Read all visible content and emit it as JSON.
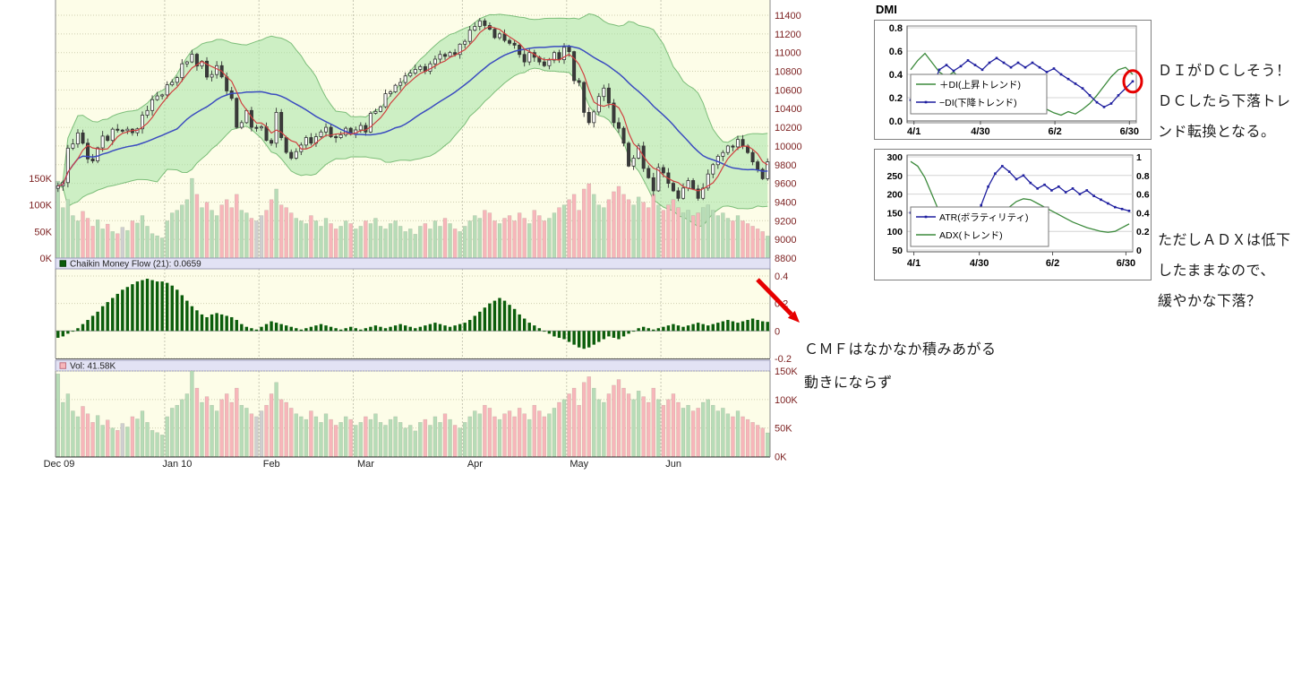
{
  "colors": {
    "chart_bg": "#fdfde8",
    "band_fill": "#a6e3a6",
    "band_edge": "#63b063",
    "ma_fast": "#d04040",
    "ma_slow": "#3b4cc0",
    "axis_text": "#7b1f1f",
    "grid": "#cfcfb0",
    "month_grid": "#c8c8b4",
    "cmf_bar": "#0b5d0b",
    "vol_up": "#b7dcb7",
    "vol_down": "#f7b6ba",
    "vol_flat": "#cfcfcf",
    "strip_bg": "#e2e2f4",
    "strip_border": "#9a9ab8",
    "dmi_plus": "#3c8a3c",
    "dmi_minus": "#1f1f9f",
    "atr_line": "#1f1f9f",
    "adx_line": "#3c8a3c",
    "annotation_red": "#e60000"
  },
  "annotations": {
    "dmi_note_lines": [
      "ＤＩがＤＣしそう！",
      "ＤＣしたら下落トレ",
      "ンド転換となる。"
    ],
    "adx_note_lines": [
      "ただしＡＤＸは低下",
      "したままなので、",
      "緩やかな下落？"
    ],
    "cmf_note_lines": [
      "ＣＭＦはなかなか積みあがる",
      "動きにならず"
    ]
  },
  "chart_data": [
    {
      "type": "candlestick",
      "name": "price-with-bollinger-and-volume",
      "title": "",
      "x_labels": [
        "Dec 09",
        "Jan 10",
        "Feb",
        "Mar",
        "Apr",
        "May",
        "Jun"
      ],
      "month_trading_days": [
        22,
        19,
        19,
        22,
        21,
        19,
        22
      ],
      "ylim": [
        8800,
        11400
      ],
      "y_ticks": [
        11400,
        11200,
        11000,
        10800,
        10600,
        10400,
        10200,
        10000,
        9800,
        9600,
        9400,
        9200,
        9000,
        8800
      ],
      "volume_overlay_ticks": [
        "150K",
        "100K",
        "50K",
        "0K"
      ],
      "overlays": [
        {
          "name": "bollinger-band",
          "period": 21,
          "stddev": 2
        },
        {
          "name": "sma-fast-red",
          "period": 5
        },
        {
          "name": "sma-slow-blue",
          "period": 25
        }
      ],
      "close": [
        9572,
        9608,
        9977,
        10022,
        10140,
        10030,
        9862,
        9840,
        9980,
        10106,
        10060,
        10180,
        10170,
        10164,
        10180,
        10142,
        10184,
        10330,
        10380,
        10496,
        10536,
        10547,
        10655,
        10682,
        10732,
        10880,
        10900,
        10982,
        10856,
        10908,
        10738,
        10765,
        10860,
        10740,
        10590,
        10510,
        10200,
        10250,
        10380,
        10200,
        10198,
        10205,
        10060,
        10030,
        10360,
        10090,
        9932,
        9870,
        9940,
        10010,
        10090,
        10030,
        10100,
        10150,
        10200,
        10100,
        10090,
        10120,
        10190,
        10126,
        10172,
        10220,
        10150,
        10350,
        10370,
        10420,
        10560,
        10580,
        10650,
        10680,
        10750,
        10780,
        10820,
        10850,
        10800,
        10880,
        10930,
        10980,
        10960,
        11000,
        10980,
        11090,
        11120,
        11240,
        11280,
        11340,
        11290,
        11250,
        11160,
        11200,
        11130,
        11100,
        11080,
        10980,
        10900,
        11000,
        10950,
        10900,
        10860,
        10920,
        11000,
        10924,
        11057,
        11010,
        10700,
        10680,
        10360,
        10250,
        10365,
        10530,
        10620,
        10460,
        10250,
        10190,
        10030,
        9785,
        9870,
        10000,
        9760,
        9660,
        9520,
        9769,
        9712,
        9600,
        9520,
        9440,
        9550,
        9630,
        9540,
        9440,
        9550,
        9700,
        9800,
        9890,
        9930,
        10000,
        9990,
        10070,
        10000,
        9930,
        9830,
        9750,
        9650,
        9830
      ]
    },
    {
      "type": "bar",
      "name": "Chaikin Money Flow (21)",
      "label": "Chaikin Money Flow (21): 0.0659",
      "current_value": 0.0659,
      "y_ticks": [
        "0.4",
        "0.2",
        "0",
        "-0.2"
      ],
      "ylim": [
        -0.2,
        0.4
      ],
      "values": [
        -0.05,
        -0.04,
        -0.02,
        0,
        0.02,
        0.05,
        0.08,
        0.11,
        0.14,
        0.18,
        0.21,
        0.24,
        0.27,
        0.3,
        0.32,
        0.34,
        0.36,
        0.37,
        0.38,
        0.37,
        0.36,
        0.36,
        0.35,
        0.33,
        0.3,
        0.26,
        0.22,
        0.18,
        0.15,
        0.12,
        0.1,
        0.12,
        0.13,
        0.12,
        0.11,
        0.1,
        0.08,
        0.05,
        0.03,
        0.02,
        0.01,
        0.03,
        0.05,
        0.07,
        0.06,
        0.05,
        0.04,
        0.03,
        0.02,
        0.01,
        0.02,
        0.03,
        0.04,
        0.05,
        0.04,
        0.03,
        0.02,
        0.01,
        0.02,
        0.03,
        0.02,
        0.01,
        0.02,
        0.03,
        0.04,
        0.03,
        0.02,
        0.03,
        0.04,
        0.05,
        0.04,
        0.03,
        0.02,
        0.03,
        0.04,
        0.05,
        0.06,
        0.05,
        0.04,
        0.03,
        0.04,
        0.05,
        0.06,
        0.08,
        0.11,
        0.14,
        0.17,
        0.2,
        0.22,
        0.24,
        0.22,
        0.19,
        0.16,
        0.12,
        0.09,
        0.06,
        0.04,
        0.02,
        0,
        -0.02,
        -0.04,
        -0.05,
        -0.06,
        -0.08,
        -0.1,
        -0.12,
        -0.13,
        -0.12,
        -0.1,
        -0.08,
        -0.06,
        -0.04,
        -0.05,
        -0.06,
        -0.04,
        -0.02,
        0,
        0.02,
        0.03,
        0.02,
        0.01,
        0.02,
        0.03,
        0.04,
        0.05,
        0.04,
        0.03,
        0.04,
        0.05,
        0.06,
        0.05,
        0.04,
        0.05,
        0.06,
        0.07,
        0.08,
        0.07,
        0.06,
        0.07,
        0.08,
        0.09,
        0.08,
        0.07,
        0.066
      ]
    },
    {
      "type": "bar",
      "name": "Vol",
      "label": "Vol: 41.58K",
      "current_value": "41.58K",
      "y_ticks": [
        "150K",
        "100K",
        "50K",
        "0K"
      ],
      "values_k": [
        145,
        95,
        110,
        80,
        70,
        88,
        75,
        60,
        72,
        55,
        64,
        50,
        46,
        58,
        52,
        70,
        66,
        80,
        60,
        46,
        42,
        38,
        70,
        85,
        90,
        100,
        110,
        150,
        120,
        95,
        105,
        90,
        80,
        100,
        110,
        95,
        120,
        90,
        85,
        75,
        70,
        80,
        90,
        110,
        130,
        100,
        95,
        85,
        75,
        70,
        65,
        80,
        70,
        60,
        75,
        65,
        55,
        60,
        70,
        65,
        55,
        60,
        70,
        65,
        75,
        60,
        55,
        65,
        70,
        60,
        50,
        55,
        45,
        60,
        65,
        55,
        70,
        60,
        75,
        65,
        55,
        50,
        60,
        70,
        80,
        75,
        90,
        85,
        70,
        65,
        75,
        80,
        70,
        85,
        75,
        65,
        90,
        80,
        70,
        75,
        85,
        95,
        100,
        110,
        120,
        90,
        130,
        140,
        120,
        100,
        95,
        110,
        125,
        135,
        120,
        110,
        100,
        115,
        105,
        95,
        120,
        100,
        90,
        100,
        110,
        95,
        85,
        90,
        80,
        85,
        95,
        100,
        90,
        80,
        85,
        75,
        70,
        80,
        70,
        65,
        60,
        55,
        50,
        41.58
      ]
    },
    {
      "type": "line",
      "title": "DMI",
      "x_labels": [
        "4/1",
        "4/30",
        "6/2",
        "6/30"
      ],
      "ylim": [
        0,
        0.8
      ],
      "y_ticks": [
        "0.8",
        "0.6",
        "0.4",
        "0.2",
        "0.0"
      ],
      "series": [
        {
          "name": "＋DI(上昇トレンド)",
          "marker": false,
          "values": [
            0.44,
            0.52,
            0.58,
            0.5,
            0.42,
            0.38,
            0.42,
            0.36,
            0.3,
            0.26,
            0.3,
            0.25,
            0.2,
            0.16,
            0.13,
            0.16,
            0.12,
            0.1,
            0.08,
            0.1,
            0.07,
            0.05,
            0.08,
            0.06,
            0.1,
            0.15,
            0.22,
            0.3,
            0.38,
            0.44,
            0.46,
            0.4
          ]
        },
        {
          "name": "−DI(下降トレンド)",
          "marker": true,
          "values": [
            0.18,
            0.15,
            0.2,
            0.28,
            0.44,
            0.48,
            0.43,
            0.47,
            0.52,
            0.48,
            0.44,
            0.5,
            0.54,
            0.5,
            0.46,
            0.5,
            0.46,
            0.5,
            0.46,
            0.42,
            0.45,
            0.4,
            0.36,
            0.32,
            0.28,
            0.22,
            0.16,
            0.12,
            0.15,
            0.22,
            0.28,
            0.34
          ]
        }
      ],
      "annotation": {
        "type": "circle",
        "meaning": "DI dead-cross watch point",
        "at_value": 0.34
      }
    },
    {
      "type": "line",
      "title": "",
      "x_labels": [
        "4/1",
        "4/30",
        "6/2",
        "6/30"
      ],
      "left_ylim": [
        50,
        300
      ],
      "left_ticks": [
        "300",
        "250",
        "200",
        "150",
        "100",
        "50"
      ],
      "right_ylim": [
        0,
        1
      ],
      "right_ticks": [
        "1",
        "0.8",
        "0.6",
        "0.4",
        "0.2",
        "0"
      ],
      "series": [
        {
          "name": "ATR(ボラティリティ)",
          "axis": "left",
          "marker": true,
          "values": [
            150,
            145,
            140,
            130,
            120,
            110,
            105,
            100,
            110,
            130,
            170,
            220,
            255,
            275,
            260,
            240,
            250,
            230,
            215,
            225,
            210,
            220,
            205,
            215,
            200,
            210,
            195,
            185,
            175,
            165,
            160,
            155
          ]
        },
        {
          "name": "ADX(トレンド)",
          "axis": "right",
          "marker": false,
          "values": [
            0.95,
            0.9,
            0.78,
            0.6,
            0.42,
            0.3,
            0.22,
            0.17,
            0.15,
            0.14,
            0.15,
            0.2,
            0.28,
            0.38,
            0.46,
            0.52,
            0.55,
            0.54,
            0.5,
            0.46,
            0.42,
            0.38,
            0.34,
            0.3,
            0.27,
            0.24,
            0.22,
            0.2,
            0.19,
            0.2,
            0.24,
            0.28
          ]
        }
      ]
    }
  ]
}
